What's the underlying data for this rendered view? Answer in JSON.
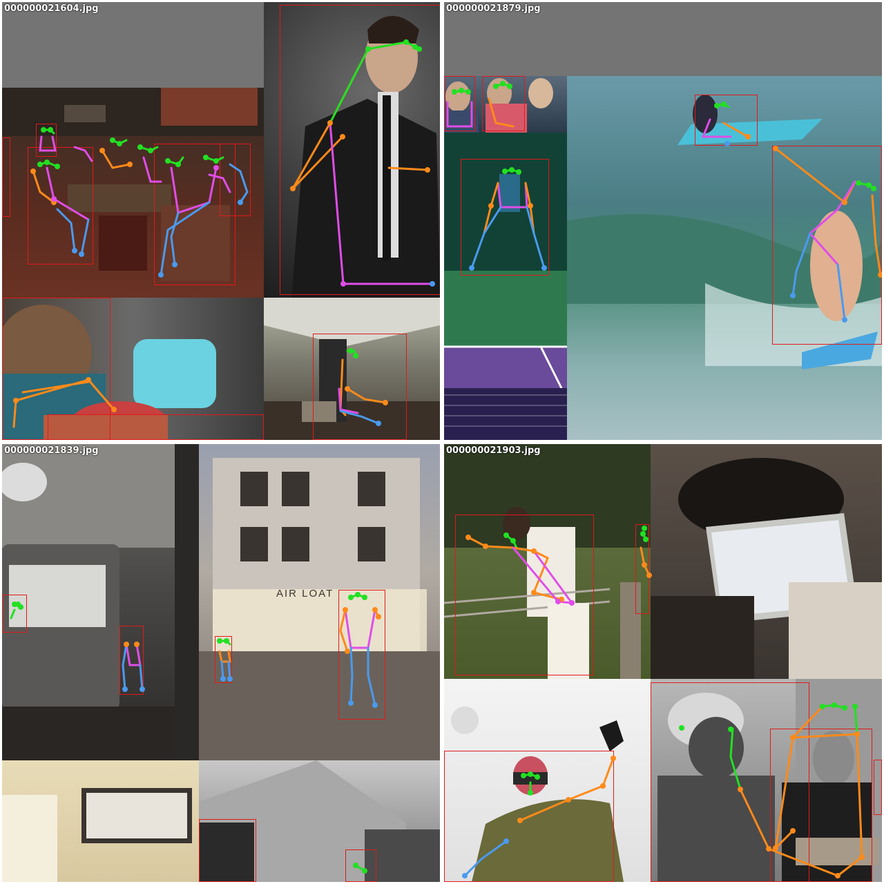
{
  "mosaics": [
    {
      "id": "tl",
      "filename": "000000021604.jpg"
    },
    {
      "id": "tr",
      "filename": "000000021879.jpg"
    },
    {
      "id": "bl",
      "filename": "000000021839.jpg"
    },
    {
      "id": "br",
      "filename": "000000021903.jpg"
    }
  ],
  "skeleton_colors": {
    "head": "#22e022",
    "arms": "#ff8a1a",
    "torso": "#e04de8",
    "legs": "#4a9aee"
  },
  "box_color": "#e01a1a",
  "sign_text": "AIR LOAT"
}
